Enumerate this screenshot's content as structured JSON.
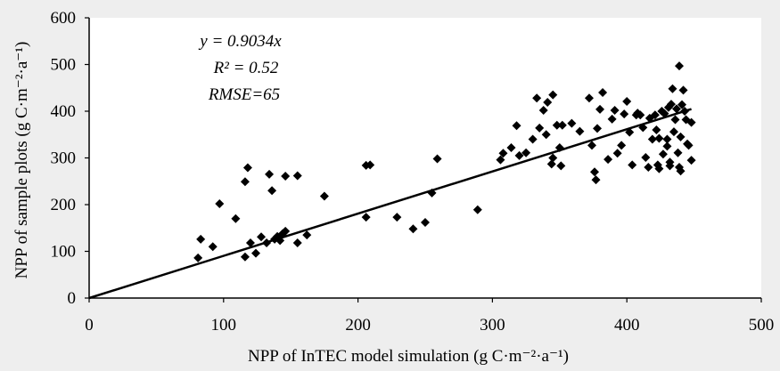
{
  "colors": {
    "background": "#eeeeee",
    "plot_area": "#ffffff",
    "marker": "#000000",
    "line": "#000000"
  },
  "chart_data": {
    "type": "scatter",
    "title": "",
    "xlabel": "NPP of InTEC model simulation (g C·m⁻²·a⁻¹)",
    "ylabel": "NPP of sample plots (g C·m⁻²·a⁻¹)",
    "xlim": [
      0,
      500
    ],
    "ylim": [
      0,
      600
    ],
    "x_ticks": [
      0,
      100,
      200,
      300,
      400,
      500
    ],
    "y_ticks": [
      0,
      100,
      200,
      300,
      400,
      500,
      600
    ],
    "grid": false,
    "legend": "none",
    "marker": "diamond",
    "annotations": [
      "y = 0.9034x",
      "R² = 0.52",
      "RMSE=65"
    ],
    "regression": {
      "slope": 0.9034,
      "intercept": 0,
      "x_range": [
        0,
        448
      ]
    },
    "points": [
      [
        81,
        86
      ],
      [
        83,
        126
      ],
      [
        92,
        110
      ],
      [
        97,
        202
      ],
      [
        109,
        170
      ],
      [
        116,
        88
      ],
      [
        116,
        249
      ],
      [
        118,
        279
      ],
      [
        120,
        118
      ],
      [
        124,
        96
      ],
      [
        128,
        131
      ],
      [
        132,
        118
      ],
      [
        134,
        265
      ],
      [
        136,
        230
      ],
      [
        138,
        126
      ],
      [
        140,
        132
      ],
      [
        142,
        123
      ],
      [
        144,
        138
      ],
      [
        146,
        261
      ],
      [
        146,
        143
      ],
      [
        155,
        118
      ],
      [
        155,
        262
      ],
      [
        162,
        135
      ],
      [
        175,
        218
      ],
      [
        206,
        173
      ],
      [
        206,
        284
      ],
      [
        209,
        285
      ],
      [
        229,
        173
      ],
      [
        241,
        148
      ],
      [
        250,
        162
      ],
      [
        255,
        225
      ],
      [
        259,
        298
      ],
      [
        289,
        189
      ],
      [
        306,
        296
      ],
      [
        308,
        310
      ],
      [
        314,
        322
      ],
      [
        318,
        369
      ],
      [
        320,
        305
      ],
      [
        325,
        311
      ],
      [
        330,
        340
      ],
      [
        333,
        428
      ],
      [
        335,
        364
      ],
      [
        338,
        402
      ],
      [
        340,
        350
      ],
      [
        341,
        419
      ],
      [
        344,
        287
      ],
      [
        345,
        300
      ],
      [
        345,
        435
      ],
      [
        348,
        370
      ],
      [
        350,
        322
      ],
      [
        351,
        283
      ],
      [
        352,
        370
      ],
      [
        359,
        374
      ],
      [
        365,
        357
      ],
      [
        372,
        428
      ],
      [
        374,
        327
      ],
      [
        376,
        270
      ],
      [
        377,
        253
      ],
      [
        378,
        363
      ],
      [
        380,
        404
      ],
      [
        382,
        440
      ],
      [
        386,
        297
      ],
      [
        389,
        383
      ],
      [
        391,
        402
      ],
      [
        393,
        310
      ],
      [
        396,
        327
      ],
      [
        398,
        394
      ],
      [
        400,
        421
      ],
      [
        402,
        355
      ],
      [
        404,
        285
      ],
      [
        407,
        392
      ],
      [
        408,
        396
      ],
      [
        410,
        392
      ],
      [
        412,
        365
      ],
      [
        414,
        301
      ],
      [
        416,
        280
      ],
      [
        417,
        385
      ],
      [
        419,
        340
      ],
      [
        421,
        392
      ],
      [
        422,
        360
      ],
      [
        423,
        285
      ],
      [
        424,
        342
      ],
      [
        424,
        277
      ],
      [
        426,
        400
      ],
      [
        427,
        308
      ],
      [
        428,
        395
      ],
      [
        430,
        340
      ],
      [
        430,
        325
      ],
      [
        431,
        408
      ],
      [
        432,
        291
      ],
      [
        432,
        283
      ],
      [
        433,
        415
      ],
      [
        434,
        448
      ],
      [
        435,
        356
      ],
      [
        436,
        382
      ],
      [
        437,
        405
      ],
      [
        438,
        311
      ],
      [
        439,
        280
      ],
      [
        439,
        497
      ],
      [
        440,
        272
      ],
      [
        440,
        345
      ],
      [
        441,
        414
      ],
      [
        442,
        445
      ],
      [
        443,
        400
      ],
      [
        444,
        382
      ],
      [
        445,
        330
      ],
      [
        446,
        327
      ],
      [
        448,
        376
      ],
      [
        448,
        295
      ]
    ]
  }
}
